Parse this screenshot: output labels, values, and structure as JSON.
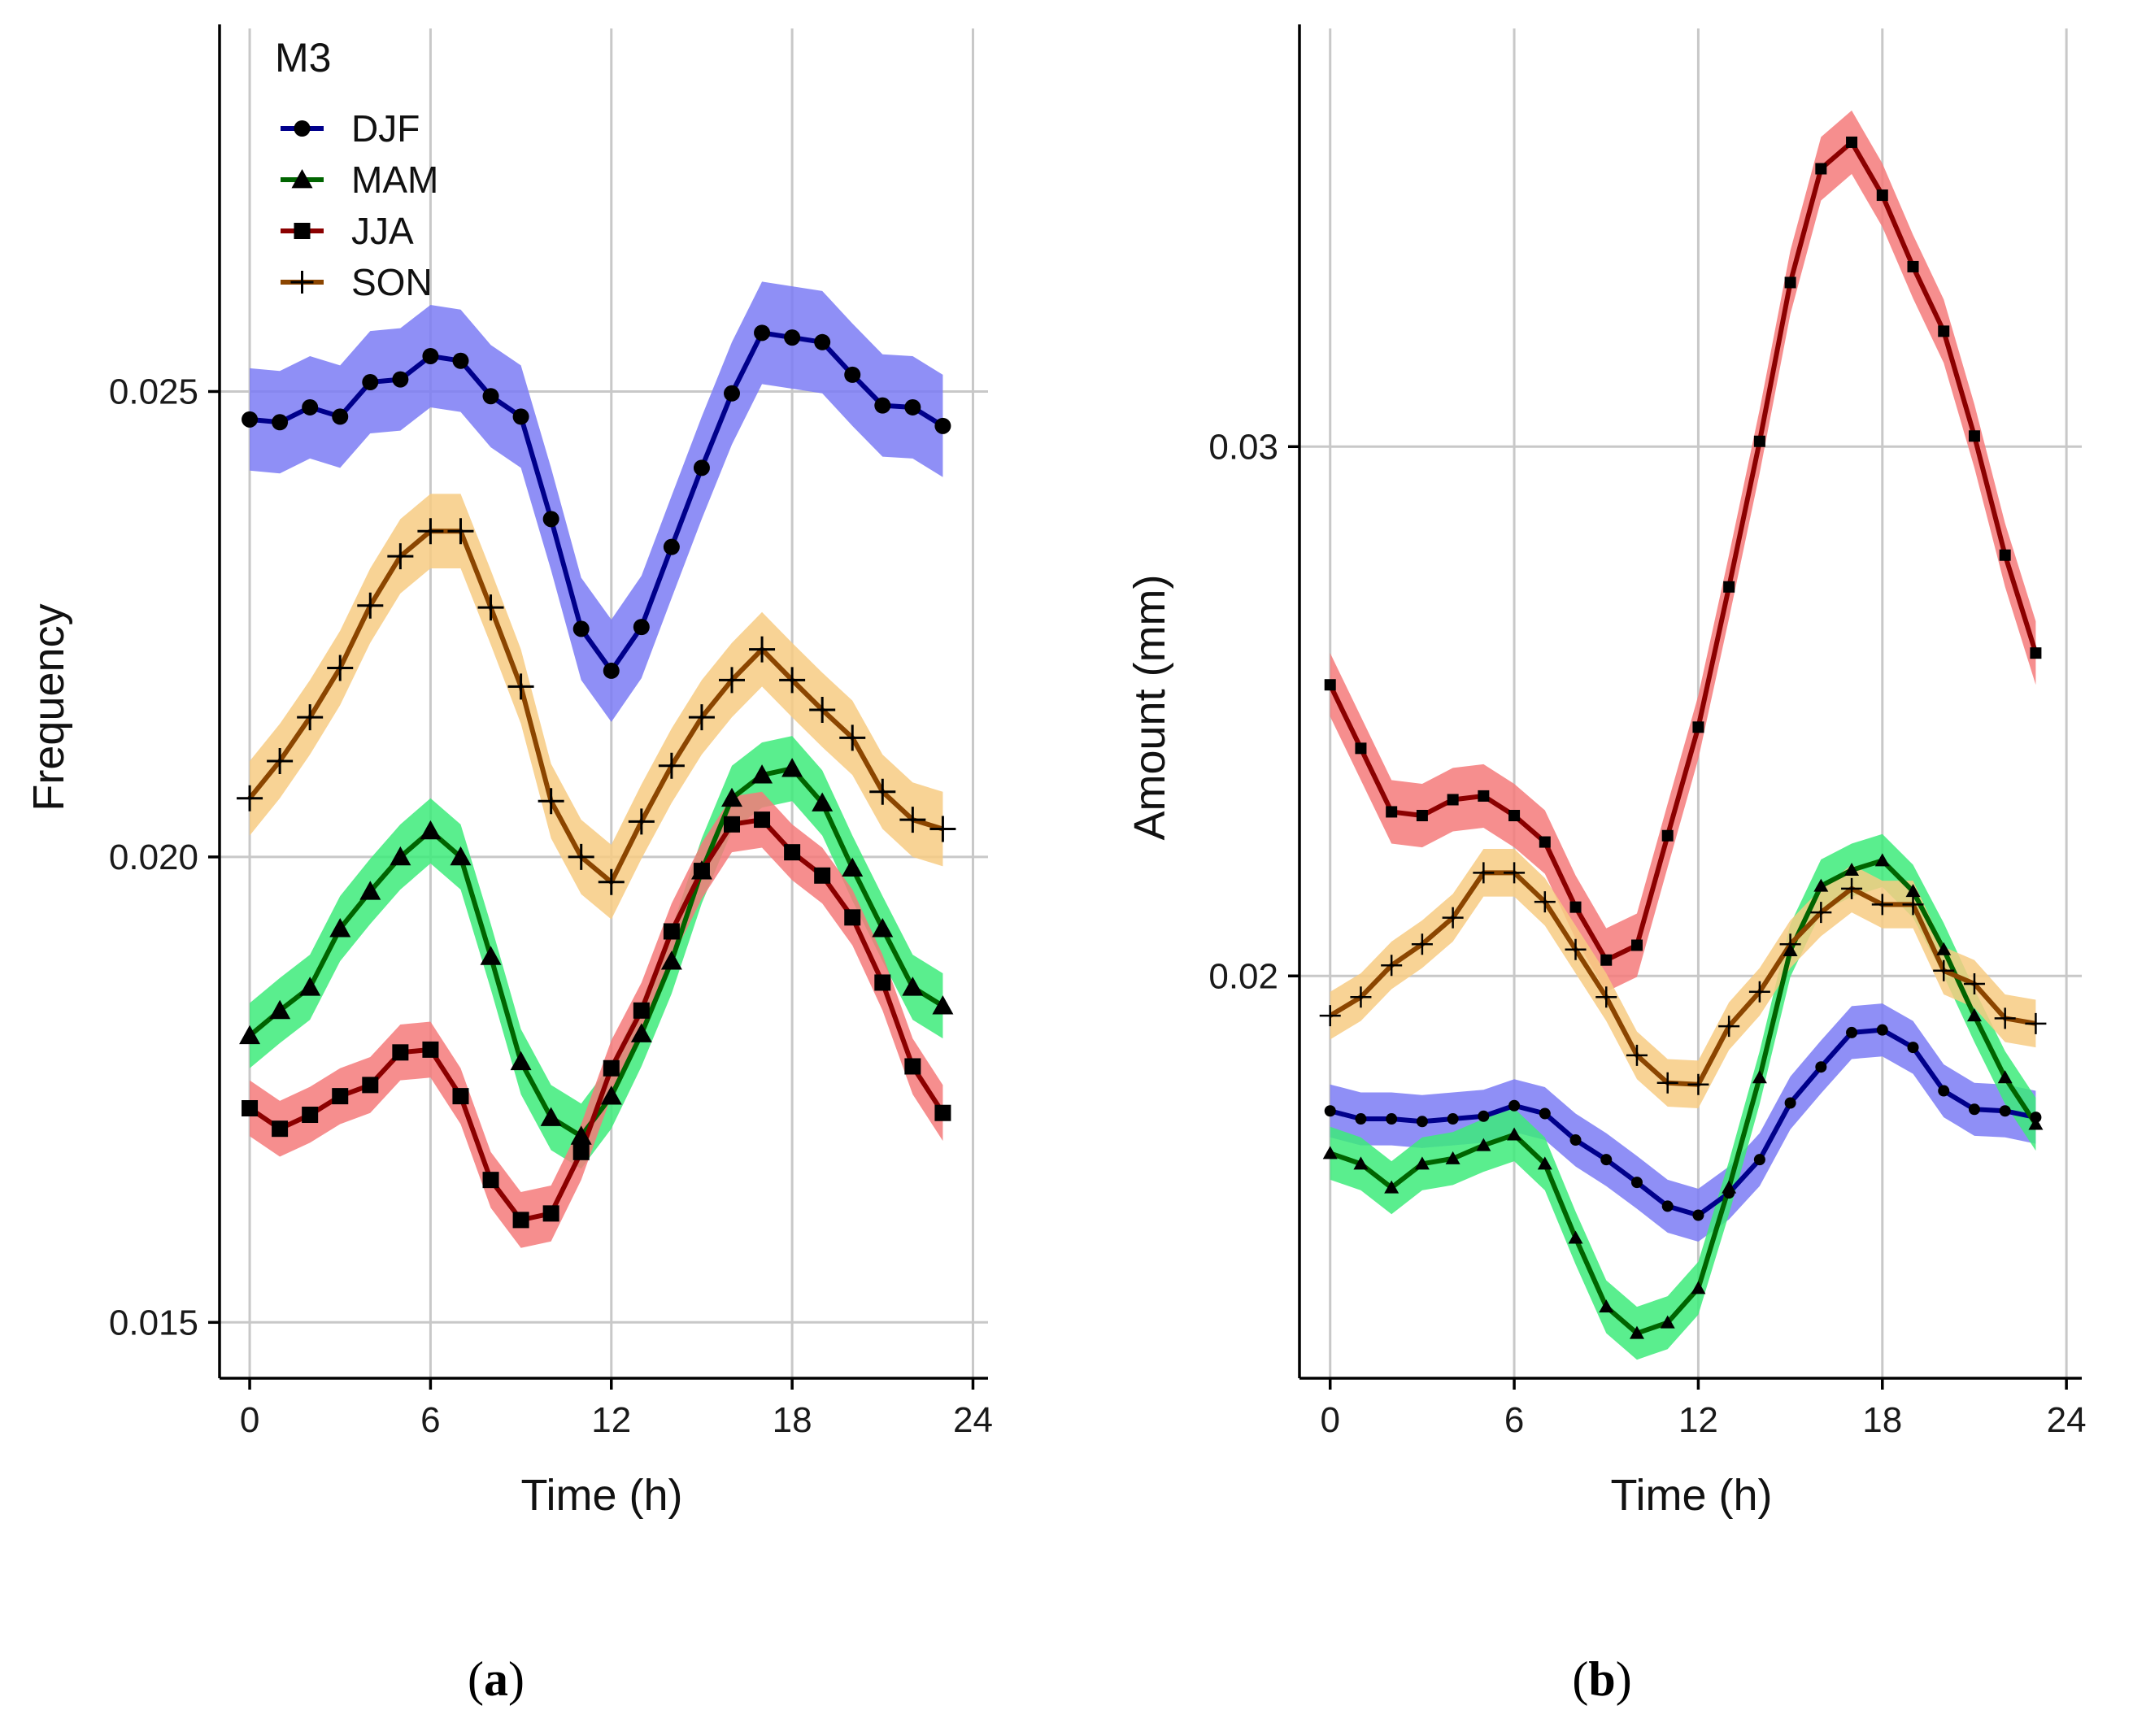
{
  "colors": {
    "DJF": {
      "line": "#00008B",
      "band": "#7B7BF5"
    },
    "MAM": {
      "line": "#006400",
      "band": "#3DEB7A"
    },
    "JJA": {
      "line": "#8B0000",
      "band": "#F47A7A"
    },
    "SON": {
      "line": "#8B4500",
      "band": "#F7CB82"
    }
  },
  "chart_data": [
    {
      "type": "line",
      "panel": "a",
      "caption_label": "a",
      "xlabel": "Time (h)",
      "ylabel": "Frequency",
      "xlim": [
        -1,
        24.5
      ],
      "ylim": [
        0.0144,
        0.0289
      ],
      "xticks": [
        0,
        6,
        12,
        18,
        24
      ],
      "xtick_labels": [
        "0",
        "6",
        "12",
        "18",
        "24"
      ],
      "yticks": [
        0.015,
        0.02,
        0.025
      ],
      "ytick_labels": [
        "0.015",
        "0.020",
        "0.025"
      ],
      "grid": true,
      "legend": {
        "title": "M3",
        "placement": "top-left",
        "entries": [
          {
            "name": "DJF",
            "marker": "circle"
          },
          {
            "name": "MAM",
            "marker": "triangle"
          },
          {
            "name": "JJA",
            "marker": "square"
          },
          {
            "name": "SON",
            "marker": "plus"
          }
        ]
      },
      "x": [
        0,
        1,
        2,
        3,
        4,
        5,
        6,
        7,
        8,
        9,
        10,
        11,
        12,
        13,
        14,
        15,
        16,
        17,
        18,
        19,
        20,
        21,
        22,
        23
      ],
      "series": [
        {
          "name": "DJF",
          "marker": "circle",
          "band_halfwidth": 0.00055,
          "values": [
            0.0247,
            0.02467,
            0.02483,
            0.02473,
            0.0251,
            0.02513,
            0.02538,
            0.02533,
            0.02495,
            0.02473,
            0.02363,
            0.02245,
            0.022,
            0.02247,
            0.02333,
            0.02418,
            0.02498,
            0.02563,
            0.02558,
            0.02553,
            0.02518,
            0.02485,
            0.02483,
            0.02463
          ]
        },
        {
          "name": "MAM",
          "marker": "triangle",
          "band_halfwidth": 0.00035,
          "values": [
            0.01808,
            0.01835,
            0.0186,
            0.01923,
            0.01963,
            0.02,
            0.02028,
            0.02,
            0.01893,
            0.0178,
            0.0172,
            0.017,
            0.01743,
            0.0181,
            0.01888,
            0.01985,
            0.02063,
            0.02088,
            0.02095,
            0.02058,
            0.01988,
            0.01923,
            0.0186,
            0.0184
          ]
        },
        {
          "name": "JJA",
          "marker": "square",
          "band_halfwidth": 0.0003,
          "values": [
            0.0173,
            0.01708,
            0.01723,
            0.01743,
            0.01755,
            0.0179,
            0.01793,
            0.01743,
            0.01653,
            0.0161,
            0.01617,
            0.01683,
            0.01773,
            0.01835,
            0.0192,
            0.01985,
            0.02035,
            0.0204,
            0.02005,
            0.0198,
            0.01935,
            0.01865,
            0.01775,
            0.01725
          ]
        },
        {
          "name": "SON",
          "marker": "plus",
          "band_halfwidth": 0.0004,
          "values": [
            0.02063,
            0.02103,
            0.0215,
            0.02203,
            0.0227,
            0.02323,
            0.0235,
            0.0235,
            0.02268,
            0.02183,
            0.0206,
            0.02,
            0.01973,
            0.02038,
            0.02098,
            0.0215,
            0.0219,
            0.02223,
            0.0219,
            0.02158,
            0.02128,
            0.0207,
            0.0204,
            0.0203
          ]
        }
      ]
    },
    {
      "type": "line",
      "panel": "b",
      "caption_label": "b",
      "xlabel": "Time (h)",
      "ylabel": "Amount (mm)",
      "xlim": [
        -1,
        24.5
      ],
      "ylim": [
        0.0124,
        0.0379
      ],
      "xticks": [
        0,
        6,
        12,
        18,
        24
      ],
      "xtick_labels": [
        "0",
        "6",
        "12",
        "18",
        "24"
      ],
      "yticks": [
        0.02,
        0.03
      ],
      "ytick_labels": [
        "0.02",
        "0.03"
      ],
      "grid": true,
      "x": [
        0,
        1,
        2,
        3,
        4,
        5,
        6,
        7,
        8,
        9,
        10,
        11,
        12,
        13,
        14,
        15,
        16,
        17,
        18,
        19,
        20,
        21,
        22,
        23
      ],
      "series": [
        {
          "name": "DJF",
          "marker": "circle",
          "band_halfwidth": 0.0005,
          "values": [
            0.01745,
            0.0173,
            0.0173,
            0.01725,
            0.0173,
            0.01735,
            0.01755,
            0.0174,
            0.0169,
            0.01653,
            0.0161,
            0.01565,
            0.01548,
            0.0159,
            0.01653,
            0.0176,
            0.01828,
            0.01893,
            0.01898,
            0.01865,
            0.01783,
            0.01748,
            0.01745,
            0.01733
          ]
        },
        {
          "name": "MAM",
          "marker": "triangle",
          "band_halfwidth": 0.0005,
          "values": [
            0.01665,
            0.01645,
            0.016,
            0.01645,
            0.01655,
            0.0168,
            0.017,
            0.01645,
            0.01505,
            0.01375,
            0.01325,
            0.01345,
            0.0141,
            0.016,
            0.01808,
            0.02048,
            0.0217,
            0.022,
            0.02218,
            0.0216,
            0.0205,
            0.01925,
            0.01808,
            0.0172
          ]
        },
        {
          "name": "JJA",
          "marker": "square",
          "band_halfwidth": 0.0006,
          "values": [
            0.0255,
            0.0243,
            0.0231,
            0.02303,
            0.02333,
            0.0234,
            0.02303,
            0.02253,
            0.0213,
            0.0203,
            0.02058,
            0.02265,
            0.0247,
            0.02735,
            0.0301,
            0.0331,
            0.03525,
            0.03575,
            0.03475,
            0.0334,
            0.03218,
            0.0302,
            0.02795,
            0.0261
          ]
        },
        {
          "name": "SON",
          "marker": "plus",
          "band_halfwidth": 0.00045,
          "values": [
            0.01925,
            0.0196,
            0.0202,
            0.0206,
            0.0211,
            0.02195,
            0.02195,
            0.0214,
            0.0205,
            0.0196,
            0.0185,
            0.01798,
            0.01795,
            0.01905,
            0.0197,
            0.0206,
            0.0212,
            0.02165,
            0.02135,
            0.02135,
            0.0201,
            0.01985,
            0.0192,
            0.0191
          ]
        }
      ]
    }
  ]
}
